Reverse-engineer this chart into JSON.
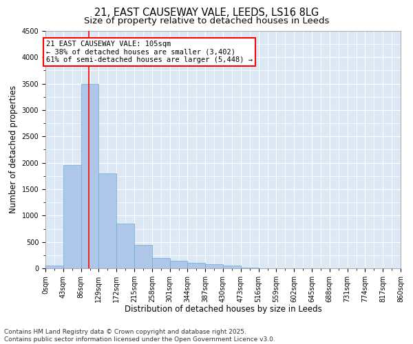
{
  "title_line1": "21, EAST CAUSEWAY VALE, LEEDS, LS16 8LG",
  "title_line2": "Size of property relative to detached houses in Leeds",
  "xlabel": "Distribution of detached houses by size in Leeds",
  "ylabel": "Number of detached properties",
  "bin_edges": [
    0,
    43,
    86,
    129,
    172,
    215,
    258,
    301,
    344,
    387,
    430,
    473,
    516,
    559,
    602,
    645,
    688,
    731,
    774,
    817,
    860
  ],
  "bar_heights": [
    50,
    1950,
    3500,
    1800,
    850,
    450,
    200,
    150,
    100,
    80,
    50,
    10,
    5,
    3,
    2,
    1,
    1,
    1,
    1,
    1
  ],
  "bar_color": "#aec6e8",
  "bar_edgecolor": "#6aaad4",
  "bar_alpha": 1.0,
  "vline_x": 105,
  "vline_color": "red",
  "ylim": [
    0,
    4500
  ],
  "yticks": [
    0,
    500,
    1000,
    1500,
    2000,
    2500,
    3000,
    3500,
    4000,
    4500
  ],
  "annotation_text": "21 EAST CAUSEWAY VALE: 105sqm\n← 38% of detached houses are smaller (3,402)\n61% of semi-detached houses are larger (5,448) →",
  "annotation_box_facecolor": "white",
  "annotation_box_edgecolor": "red",
  "footer_line1": "Contains HM Land Registry data © Crown copyright and database right 2025.",
  "footer_line2": "Contains public sector information licensed under the Open Government Licence v3.0.",
  "background_color": "#dce9f5",
  "grid_color": "white",
  "title_fontsize": 10.5,
  "subtitle_fontsize": 9.5,
  "tick_fontsize": 7,
  "ylabel_fontsize": 8.5,
  "xlabel_fontsize": 8.5,
  "annotation_fontsize": 7.5,
  "footer_fontsize": 6.5
}
